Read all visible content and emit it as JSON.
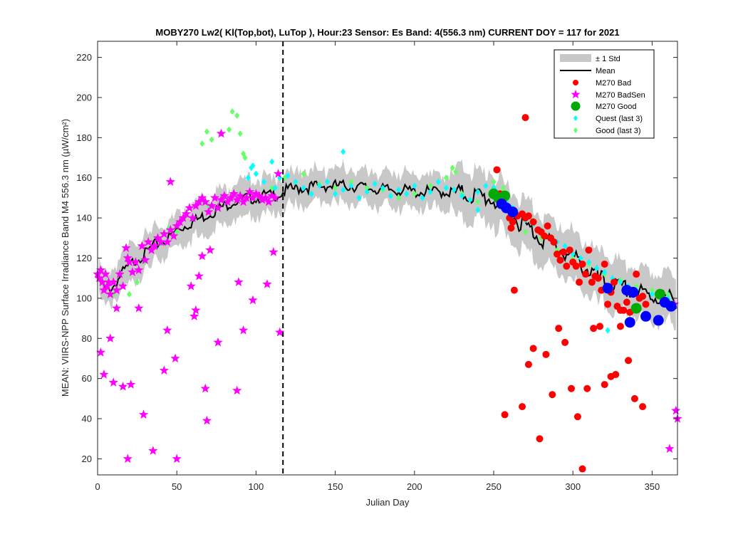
{
  "chart_data": {
    "type": "scatter",
    "title": "MOBY270   Lw2( Kl(Top,bot), LuTop ),   Hour:23 Sensor: Es Band: 4(556.3 nm)   CURRENT DOY = 117 for 2021",
    "xlabel": "Julian Day",
    "ylabel": "MEAN: VIIRS-NPP Surface Irradiance Band M4 556.3 nm (µW/cm²)",
    "xlim": [
      0,
      366
    ],
    "ylim": [
      12,
      228
    ],
    "xticks": [
      "0",
      "50",
      "100",
      "150",
      "200",
      "250",
      "300",
      "350"
    ],
    "xtick_values": [
      0,
      50,
      100,
      150,
      200,
      250,
      300,
      350
    ],
    "yticks": [
      "20",
      "40",
      "60",
      "80",
      "100",
      "120",
      "140",
      "160",
      "180",
      "200",
      "220"
    ],
    "ytick_values": [
      20,
      40,
      60,
      80,
      100,
      120,
      140,
      160,
      180,
      200,
      220
    ],
    "current_doy_line": 117,
    "legend_position": "top-right",
    "colors": {
      "std_band": "#c8c8c8",
      "mean": "#000000",
      "bad": "#ff0000",
      "badsen": "#ff00ff",
      "good": "#00aa00",
      "quest": "#00ffff",
      "good_last3": "#66ff66",
      "blue": "#0000ff"
    },
    "series": [
      {
        "name": "± 1 Std",
        "kind": "band"
      },
      {
        "name": "Mean",
        "kind": "line",
        "x": [
          0,
          5,
          10,
          15,
          20,
          25,
          30,
          35,
          40,
          45,
          50,
          55,
          60,
          65,
          70,
          75,
          80,
          85,
          90,
          95,
          100,
          105,
          110,
          115,
          120,
          130,
          140,
          150,
          160,
          170,
          180,
          190,
          200,
          210,
          220,
          230,
          240,
          250,
          260,
          270,
          280,
          290,
          300,
          310,
          320,
          330,
          340,
          350,
          360,
          365
        ],
        "y": [
          110,
          104,
          106,
          112,
          116,
          120,
          122,
          126,
          128,
          130,
          134,
          136,
          138,
          140,
          142,
          144,
          146,
          148,
          149,
          150,
          150,
          151,
          151,
          152,
          154,
          155,
          156,
          156,
          156,
          155,
          154,
          154,
          153,
          153,
          153,
          152,
          151,
          149,
          142,
          136,
          130,
          125,
          120,
          114,
          108,
          105,
          103,
          101,
          100,
          99
        ]
      },
      {
        "name": "M270 Bad",
        "kind": "circle",
        "x": [
          252,
          254,
          256,
          258,
          260,
          262,
          265,
          268,
          270,
          272,
          275,
          278,
          280,
          282,
          284,
          286,
          288,
          290,
          292,
          294,
          296,
          298,
          300,
          302,
          304,
          306,
          308,
          310,
          312,
          314,
          316,
          318,
          320,
          322,
          324,
          326,
          328,
          330,
          332,
          334,
          336,
          338,
          340,
          342,
          344,
          346,
          270,
          257,
          261,
          263,
          268,
          272,
          275,
          279,
          283,
          287,
          291,
          295,
          299,
          303,
          306,
          309,
          313,
          317,
          320,
          324,
          327,
          330,
          335,
          339,
          344
        ],
        "y": [
          164,
          152,
          148,
          145,
          140,
          138,
          141,
          142,
          140,
          141,
          138,
          134,
          133,
          131,
          136,
          130,
          128,
          122,
          119,
          123,
          116,
          124,
          118,
          116,
          108,
          117,
          112,
          124,
          108,
          111,
          110,
          104,
          117,
          97,
          103,
          108,
          96,
          94,
          94,
          98,
          93,
          102,
          112,
          100,
          101,
          97,
          190,
          42,
          135,
          104,
          46,
          67,
          75,
          30,
          72,
          52,
          85,
          78,
          55,
          41,
          15,
          55,
          85,
          86,
          57,
          61,
          62,
          86,
          69,
          50,
          46
        ]
      },
      {
        "name": "M270 BadSen",
        "kind": "star",
        "x": [
          0,
          1,
          2,
          3,
          4,
          5,
          6,
          7,
          8,
          10,
          12,
          14,
          16,
          18,
          19,
          20,
          22,
          24,
          26,
          28,
          30,
          32,
          34,
          36,
          38,
          40,
          42,
          44,
          46,
          48,
          50,
          52,
          54,
          56,
          58,
          60,
          62,
          64,
          66,
          68,
          70,
          72,
          74,
          76,
          78,
          80,
          82,
          84,
          86,
          88,
          90,
          92,
          94,
          96,
          98,
          100,
          102,
          104,
          106,
          108,
          110,
          112,
          114,
          2,
          4,
          8,
          10,
          12,
          16,
          19,
          21,
          26,
          29,
          35,
          42,
          44,
          46,
          49,
          50,
          59,
          61,
          62,
          64,
          66,
          68,
          69,
          71,
          76,
          78,
          88,
          89,
          92,
          98,
          107,
          111,
          115,
          364,
          365,
          366,
          361
        ],
        "y": [
          112,
          110,
          114,
          108,
          104,
          112,
          106,
          108,
          102,
          108,
          104,
          112,
          106,
          125,
          120,
          118,
          113,
          118,
          114,
          126,
          119,
          128,
          124,
          126,
          130,
          128,
          132,
          128,
          134,
          131,
          136,
          138,
          140,
          142,
          145,
          140,
          146,
          148,
          150,
          148,
          143,
          146,
          150,
          145,
          149,
          151,
          148,
          150,
          152,
          149,
          151,
          148,
          150,
          153,
          150,
          152,
          151,
          149,
          150,
          148,
          151,
          150,
          162,
          73,
          62,
          80,
          58,
          95,
          56,
          20,
          57,
          95,
          42,
          24,
          64,
          84,
          158,
          70,
          20,
          106,
          91,
          94,
          111,
          121,
          55,
          39,
          124,
          78,
          182,
          54,
          108,
          84,
          99,
          107,
          123,
          83,
          97,
          44,
          40,
          25
        ]
      },
      {
        "name": "M270 Good",
        "kind": "circle",
        "x": [
          250,
          253,
          257,
          340,
          355
        ],
        "y": [
          152,
          150,
          151,
          95,
          102
        ]
      },
      {
        "name": "Quest (last 3)",
        "kind": "diamond",
        "x": [
          95,
          100,
          105,
          110,
          112,
          115,
          120,
          125,
          130,
          135,
          140,
          145,
          150,
          155,
          160,
          165,
          170,
          175,
          180,
          185,
          190,
          195,
          200,
          205,
          210,
          215,
          220,
          225,
          230,
          235,
          240,
          245,
          250,
          258,
          262,
          265,
          270,
          275,
          280,
          285,
          290,
          295,
          300,
          305,
          310,
          315,
          320,
          325,
          330,
          335,
          340,
          350,
          360,
          155,
          98,
          97,
          240,
          322
        ],
        "y": [
          160,
          162,
          158,
          168,
          155,
          160,
          161,
          158,
          155,
          152,
          156,
          158,
          152,
          154,
          156,
          150,
          153,
          157,
          155,
          151,
          154,
          152,
          156,
          150,
          153,
          158,
          155,
          154,
          151,
          149,
          153,
          156,
          155,
          148,
          145,
          142,
          139,
          137,
          134,
          130,
          128,
          126,
          122,
          120,
          118,
          115,
          113,
          110,
          108,
          106,
          104,
          102,
          100,
          173,
          166,
          165,
          144,
          84
        ]
      },
      {
        "name": "Good (last 3)",
        "kind": "diamond",
        "x": [
          66,
          69,
          72,
          78,
          83,
          85,
          88,
          90,
          92,
          93,
          5,
          10,
          15,
          20,
          25,
          30,
          35,
          40,
          45,
          50,
          55,
          60,
          70,
          80,
          90,
          100,
          110,
          118,
          125,
          130,
          140,
          150,
          160,
          170,
          180,
          190,
          200,
          210,
          220,
          224,
          226,
          230,
          240,
          250,
          256,
          262,
          270,
          280,
          290,
          300,
          310,
          320,
          330,
          340,
          350,
          360,
          362
        ],
        "y": [
          177,
          183,
          179,
          182,
          184,
          193,
          191,
          182,
          172,
          170,
          108,
          102,
          112,
          102,
          108,
          118,
          125,
          128,
          135,
          133,
          140,
          140,
          146,
          150,
          152,
          150,
          155,
          160,
          158,
          162,
          157,
          155,
          158,
          155,
          154,
          150,
          152,
          156,
          160,
          165,
          163,
          152,
          148,
          158,
          155,
          138,
          133,
          130,
          124,
          120,
          117,
          112,
          109,
          106,
          104,
          102,
          98
        ]
      },
      {
        "name": "Blue markers",
        "kind": "circle",
        "x": [
          255,
          258,
          262,
          322,
          334,
          336,
          338,
          346,
          354,
          358,
          362
        ],
        "y": [
          147,
          145,
          143,
          105,
          104,
          88,
          103,
          91,
          89,
          98,
          96
        ]
      }
    ]
  },
  "legend": {
    "items": [
      "± 1 Std",
      "Mean",
      "M270 Bad",
      "M270 BadSen",
      "M270 Good",
      "Quest (last 3)",
      "Good (last 3)"
    ]
  }
}
